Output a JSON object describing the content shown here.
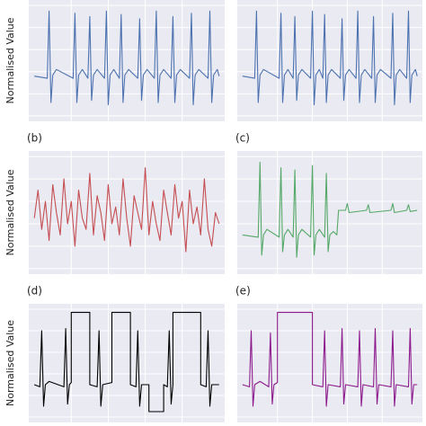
{
  "chart_data": [
    {
      "type": "line",
      "ylabel": "Normalised Value",
      "xlim": [
        -3,
        103
      ],
      "ylim": [
        -0.05,
        1.05
      ],
      "xticks": [
        20,
        40,
        60,
        80
      ],
      "yticks": [
        0,
        0.2,
        0.4,
        0.6,
        0.8,
        1
      ],
      "grid": true,
      "x": [
        0,
        7,
        8,
        9,
        10,
        12,
        21,
        22,
        23,
        24,
        26,
        29,
        30,
        31,
        32,
        34,
        38,
        39,
        40,
        41,
        43,
        46,
        47,
        48,
        49,
        51,
        56,
        57,
        58,
        59,
        61,
        65,
        66,
        67,
        68,
        70,
        74,
        75,
        76,
        77,
        79,
        84,
        85,
        86,
        87,
        89,
        94,
        95,
        96,
        97,
        99,
        100
      ],
      "series": [
        {
          "color": "#4c72b0",
          "values": [
            0.36,
            0.34,
            0.95,
            0.12,
            0.37,
            0.42,
            0.34,
            0.93,
            0.12,
            0.37,
            0.42,
            0.34,
            0.9,
            0.14,
            0.37,
            0.42,
            0.34,
            0.95,
            0.1,
            0.37,
            0.42,
            0.34,
            0.92,
            0.12,
            0.37,
            0.42,
            0.34,
            0.88,
            0.14,
            0.37,
            0.42,
            0.34,
            0.95,
            0.12,
            0.37,
            0.42,
            0.34,
            0.9,
            0.12,
            0.37,
            0.42,
            0.34,
            0.93,
            0.1,
            0.37,
            0.42,
            0.34,
            0.95,
            0.12,
            0.37,
            0.42,
            0.36
          ]
        }
      ]
    },
    {
      "type": "line",
      "xlim": [
        -3,
        103
      ],
      "ylim": [
        -0.05,
        1.05
      ],
      "xticks": [
        20,
        40,
        60,
        80
      ],
      "yticks": [
        0,
        0.2,
        0.4,
        0.6,
        0.8,
        1
      ],
      "grid": true,
      "x": [
        0,
        7,
        8,
        9,
        10,
        12,
        21,
        22,
        23,
        24,
        26,
        29,
        30,
        31,
        32,
        34,
        39,
        40,
        41,
        42,
        44,
        46,
        47,
        48,
        49,
        51,
        56,
        57,
        58,
        59,
        61,
        65,
        66,
        67,
        68,
        70,
        74,
        75,
        76,
        77,
        79,
        85,
        86,
        87,
        88,
        90,
        94,
        95,
        96,
        97,
        99,
        100
      ],
      "series": [
        {
          "color": "#4c72b0",
          "values": [
            0.36,
            0.34,
            0.95,
            0.12,
            0.37,
            0.42,
            0.34,
            0.93,
            0.12,
            0.37,
            0.42,
            0.34,
            0.9,
            0.14,
            0.37,
            0.42,
            0.34,
            0.95,
            0.1,
            0.37,
            0.42,
            0.34,
            0.92,
            0.12,
            0.37,
            0.42,
            0.34,
            0.88,
            0.14,
            0.37,
            0.42,
            0.34,
            0.95,
            0.12,
            0.37,
            0.42,
            0.34,
            0.9,
            0.12,
            0.37,
            0.42,
            0.34,
            0.93,
            0.1,
            0.37,
            0.42,
            0.34,
            0.95,
            0.12,
            0.37,
            0.42,
            0.36
          ]
        }
      ]
    },
    {
      "type": "line",
      "label": "(b)",
      "ylabel": "Normalised Value",
      "xlim": [
        -3,
        103
      ],
      "ylim": [
        -0.05,
        1.05
      ],
      "xticks": [
        20,
        40,
        60,
        80
      ],
      "yticks": [
        0,
        0.2,
        0.4,
        0.6,
        0.8,
        1
      ],
      "grid": true,
      "x": [
        0,
        2,
        4,
        6,
        8,
        10,
        12,
        14,
        16,
        18,
        20,
        22,
        24,
        26,
        28,
        30,
        32,
        34,
        36,
        38,
        40,
        42,
        44,
        46,
        48,
        50,
        52,
        54,
        56,
        58,
        60,
        62,
        64,
        66,
        68,
        70,
        72,
        74,
        76,
        78,
        80,
        82,
        84,
        86,
        88,
        90,
        92,
        94,
        96,
        98,
        100
      ],
      "series": [
        {
          "color": "#c44e52",
          "values": [
            0.45,
            0.7,
            0.35,
            0.6,
            0.25,
            0.75,
            0.5,
            0.3,
            0.8,
            0.4,
            0.6,
            0.2,
            0.7,
            0.45,
            0.35,
            0.85,
            0.3,
            0.65,
            0.5,
            0.25,
            0.75,
            0.4,
            0.55,
            0.3,
            0.8,
            0.45,
            0.2,
            0.65,
            0.5,
            0.35,
            0.9,
            0.3,
            0.6,
            0.4,
            0.25,
            0.7,
            0.5,
            0.3,
            0.75,
            0.45,
            0.6,
            0.15,
            0.7,
            0.4,
            0.55,
            0.3,
            0.8,
            0.35,
            0.2,
            0.5,
            0.4
          ]
        }
      ]
    },
    {
      "type": "line",
      "label": "(c)",
      "xlim": [
        -3,
        103
      ],
      "ylim": [
        -0.05,
        1.05
      ],
      "xticks": [
        20,
        40,
        60,
        80
      ],
      "yticks": [
        0,
        0.2,
        0.4,
        0.6,
        0.8,
        1
      ],
      "grid": true,
      "x": [
        0,
        9,
        10,
        11,
        12,
        14,
        21,
        22,
        23,
        24,
        26,
        29,
        30,
        31,
        32,
        34,
        39,
        40,
        41,
        42,
        44,
        47,
        48,
        49,
        50,
        52,
        54,
        55,
        59,
        60,
        61,
        71,
        72,
        73,
        85,
        86,
        87,
        94,
        95,
        96,
        100
      ],
      "series": [
        {
          "color": "#55a868",
          "values": [
            0.3,
            0.28,
            0.95,
            0.12,
            0.3,
            0.35,
            0.28,
            0.9,
            0.15,
            0.3,
            0.35,
            0.28,
            0.88,
            0.1,
            0.3,
            0.35,
            0.28,
            0.92,
            0.12,
            0.3,
            0.35,
            0.28,
            0.85,
            0.15,
            0.3,
            0.33,
            0.3,
            0.52,
            0.52,
            0.58,
            0.5,
            0.52,
            0.57,
            0.5,
            0.52,
            0.58,
            0.5,
            0.52,
            0.57,
            0.51,
            0.52
          ]
        }
      ]
    },
    {
      "type": "line",
      "label": "(d)",
      "ylabel": "Normalised Value",
      "xlim": [
        -3,
        103
      ],
      "ylim": [
        -0.05,
        1.05
      ],
      "xticks": [
        20,
        40,
        60,
        80
      ],
      "yticks": [
        0,
        0.2,
        0.4,
        0.6,
        0.8,
        1
      ],
      "grid": true,
      "x": [
        0,
        3,
        4,
        5,
        6,
        8,
        16,
        17,
        18,
        19,
        20,
        20,
        30,
        30,
        34,
        35,
        36,
        37,
        42,
        42,
        52,
        52,
        55,
        56,
        57,
        58,
        62,
        62,
        70,
        70,
        72,
        73,
        74,
        75,
        75,
        90,
        90,
        93,
        94,
        95,
        96,
        100
      ],
      "series": [
        {
          "color": "#000000",
          "values": [
            0.3,
            0.28,
            0.8,
            0.1,
            0.3,
            0.33,
            0.28,
            0.82,
            0.12,
            0.3,
            0.32,
            0.97,
            0.97,
            0.3,
            0.28,
            0.8,
            0.1,
            0.3,
            0.32,
            0.97,
            0.97,
            0.3,
            0.28,
            0.8,
            0.1,
            0.3,
            0.3,
            0.05,
            0.05,
            0.3,
            0.28,
            0.8,
            0.12,
            0.3,
            0.97,
            0.97,
            0.3,
            0.28,
            0.8,
            0.1,
            0.3,
            0.3
          ]
        }
      ]
    },
    {
      "type": "line",
      "label": "(e)",
      "xlim": [
        -3,
        103
      ],
      "ylim": [
        -0.05,
        1.05
      ],
      "xticks": [
        20,
        40,
        60,
        80
      ],
      "yticks": [
        0,
        0.2,
        0.4,
        0.6,
        0.8,
        1
      ],
      "grid": true,
      "x": [
        0,
        4,
        5,
        6,
        7,
        10,
        15,
        16,
        17,
        18,
        20,
        20,
        40,
        40,
        46,
        47,
        48,
        49,
        56,
        57,
        58,
        59,
        66,
        67,
        68,
        69,
        75,
        76,
        77,
        78,
        85,
        86,
        87,
        88,
        95,
        96,
        97,
        98,
        100
      ],
      "series": [
        {
          "color": "#8c1a8c",
          "values": [
            0.3,
            0.28,
            0.8,
            0.1,
            0.3,
            0.33,
            0.28,
            0.78,
            0.12,
            0.3,
            0.32,
            0.97,
            0.97,
            0.3,
            0.28,
            0.8,
            0.1,
            0.3,
            0.28,
            0.82,
            0.12,
            0.3,
            0.28,
            0.8,
            0.1,
            0.3,
            0.28,
            0.82,
            0.12,
            0.3,
            0.28,
            0.8,
            0.1,
            0.3,
            0.28,
            0.82,
            0.12,
            0.3,
            0.3
          ]
        }
      ]
    }
  ]
}
